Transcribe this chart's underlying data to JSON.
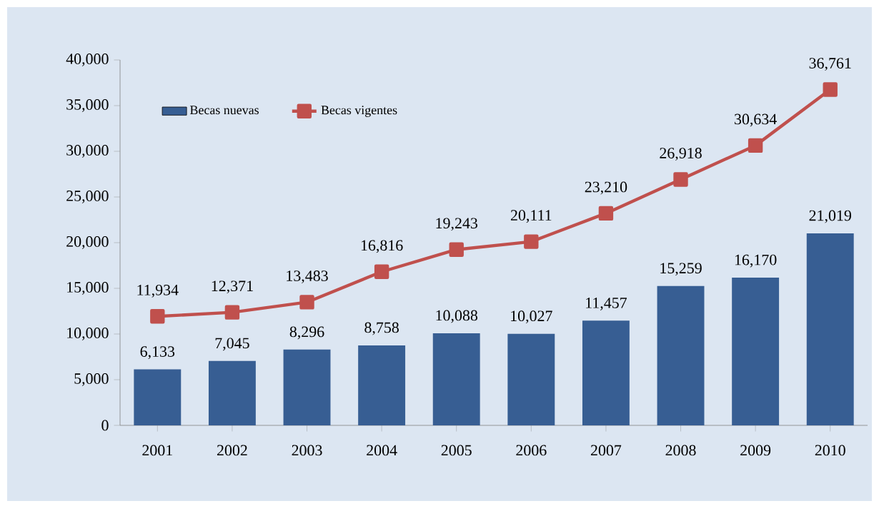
{
  "chart_data": {
    "type": "bar",
    "categories": [
      "2001",
      "2002",
      "2003",
      "2004",
      "2005",
      "2006",
      "2007",
      "2008",
      "2009",
      "2010"
    ],
    "series": [
      {
        "name": "Becas nuevas",
        "color": "#375e93",
        "values": [
          6133,
          7045,
          8296,
          8758,
          10088,
          10027,
          11457,
          15259,
          16170,
          21019
        ],
        "value_labels": [
          "6,133",
          "7,045",
          "8,296",
          "8,758",
          "10,088",
          "10,027",
          "11,457",
          "15,259",
          "16,170",
          "21,019"
        ]
      },
      {
        "name": "Becas vigentes",
        "type": "line",
        "color": "#c0504d",
        "marker": "square",
        "values": [
          11934,
          12371,
          13483,
          16816,
          19243,
          20111,
          23210,
          26918,
          30634,
          36761
        ],
        "value_labels": [
          "11,934",
          "12,371",
          "13,483",
          "16,816",
          "19,243",
          "20,111",
          "23,210",
          "26,918",
          "30,634",
          "36,761"
        ]
      }
    ],
    "ylim": [
      0,
      40000
    ],
    "yticks": [
      0,
      {
        "value": 5000,
        "label": "5,000"
      },
      {
        "value": 10000,
        "label": "10,000"
      },
      {
        "value": 15000,
        "label": "15,000"
      },
      {
        "value": 20000,
        "label": "20,000"
      },
      {
        "value": 25000,
        "label": "25,000"
      },
      {
        "value": 30000,
        "label": "30,000"
      },
      {
        "value": 35000,
        "label": "35,000"
      },
      {
        "value": 40000,
        "label": "40,000"
      }
    ],
    "grid": false,
    "legend": "top left"
  }
}
